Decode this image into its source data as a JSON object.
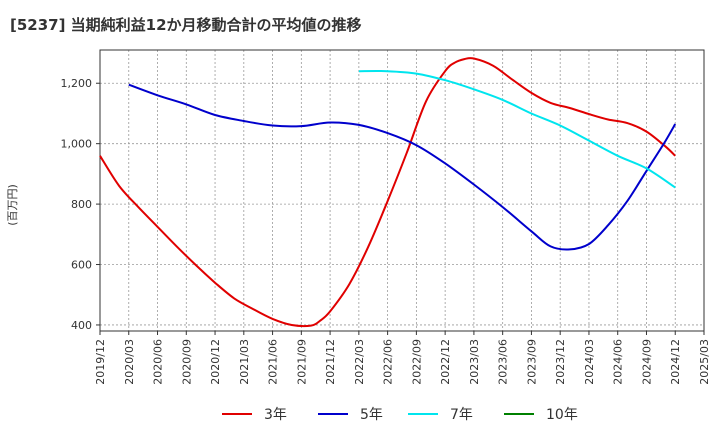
{
  "chart_data": {
    "type": "line",
    "title": "[5237]  当期純利益12か月移動合計の平均値の推移",
    "ylabel": "(百万円)",
    "xlabel": "",
    "ylim": [
      380,
      1310
    ],
    "xlim": [
      "2019-12",
      "2025-03"
    ],
    "yticks": [
      400,
      600,
      800,
      1000,
      1200
    ],
    "ytick_labels": [
      "400",
      "600",
      "800",
      "1,000",
      "1,200"
    ],
    "xticks": [
      "2019/12",
      "2020/03",
      "2020/06",
      "2020/09",
      "2020/12",
      "2021/03",
      "2021/06",
      "2021/09",
      "2021/12",
      "2022/03",
      "2022/06",
      "2022/09",
      "2022/12",
      "2023/03",
      "2023/06",
      "2023/09",
      "2023/12",
      "2024/03",
      "2024/06",
      "2024/09",
      "2024/12",
      "2025/03"
    ],
    "grid": true,
    "legend_position": "bottom",
    "series": [
      {
        "name": "3年",
        "color": "#e00000",
        "points": [
          [
            "2019-12",
            960
          ],
          [
            "2020-02",
            860
          ],
          [
            "2020-04",
            790
          ],
          [
            "2020-06",
            725
          ],
          [
            "2020-08",
            660
          ],
          [
            "2020-10",
            598
          ],
          [
            "2020-12",
            540
          ],
          [
            "2021-02",
            488
          ],
          [
            "2021-04",
            452
          ],
          [
            "2021-06",
            420
          ],
          [
            "2021-08",
            400
          ],
          [
            "2021-10",
            398
          ],
          [
            "2021-11",
            415
          ],
          [
            "2021-12",
            445
          ],
          [
            "2022-02",
            535
          ],
          [
            "2022-04",
            660
          ],
          [
            "2022-06",
            810
          ],
          [
            "2022-08",
            970
          ],
          [
            "2022-10",
            1140
          ],
          [
            "2022-12",
            1240
          ],
          [
            "2023-01",
            1268
          ],
          [
            "2023-02",
            1280
          ],
          [
            "2023-03",
            1282
          ],
          [
            "2023-05",
            1258
          ],
          [
            "2023-07",
            1212
          ],
          [
            "2023-09",
            1168
          ],
          [
            "2023-11",
            1135
          ],
          [
            "2024-01",
            1118
          ],
          [
            "2024-03",
            1098
          ],
          [
            "2024-05",
            1080
          ],
          [
            "2024-07",
            1068
          ],
          [
            "2024-09",
            1040
          ],
          [
            "2024-11",
            990
          ],
          [
            "2024-12",
            960
          ]
        ]
      },
      {
        "name": "5年",
        "color": "#0000cc",
        "points": [
          [
            "2020-03",
            1195
          ],
          [
            "2020-06",
            1160
          ],
          [
            "2020-09",
            1130
          ],
          [
            "2020-12",
            1095
          ],
          [
            "2021-03",
            1075
          ],
          [
            "2021-06",
            1060
          ],
          [
            "2021-09",
            1058
          ],
          [
            "2021-12",
            1070
          ],
          [
            "2022-03",
            1062
          ],
          [
            "2022-06",
            1035
          ],
          [
            "2022-09",
            995
          ],
          [
            "2022-12",
            935
          ],
          [
            "2023-03",
            865
          ],
          [
            "2023-06",
            790
          ],
          [
            "2023-09",
            710
          ],
          [
            "2023-11",
            660
          ],
          [
            "2024-01",
            650
          ],
          [
            "2024-03",
            668
          ],
          [
            "2024-05",
            730
          ],
          [
            "2024-07",
            810
          ],
          [
            "2024-09",
            910
          ],
          [
            "2024-11",
            1010
          ],
          [
            "2024-12",
            1065
          ]
        ]
      },
      {
        "name": "7年",
        "color": "#00e5ee",
        "points": [
          [
            "2022-03",
            1240
          ],
          [
            "2022-06",
            1240
          ],
          [
            "2022-09",
            1232
          ],
          [
            "2022-12",
            1210
          ],
          [
            "2023-03",
            1180
          ],
          [
            "2023-06",
            1145
          ],
          [
            "2023-09",
            1100
          ],
          [
            "2023-12",
            1060
          ],
          [
            "2024-03",
            1010
          ],
          [
            "2024-06",
            960
          ],
          [
            "2024-09",
            918
          ],
          [
            "2024-12",
            855
          ]
        ]
      },
      {
        "name": "10年",
        "color": "#008000",
        "points": []
      }
    ]
  }
}
